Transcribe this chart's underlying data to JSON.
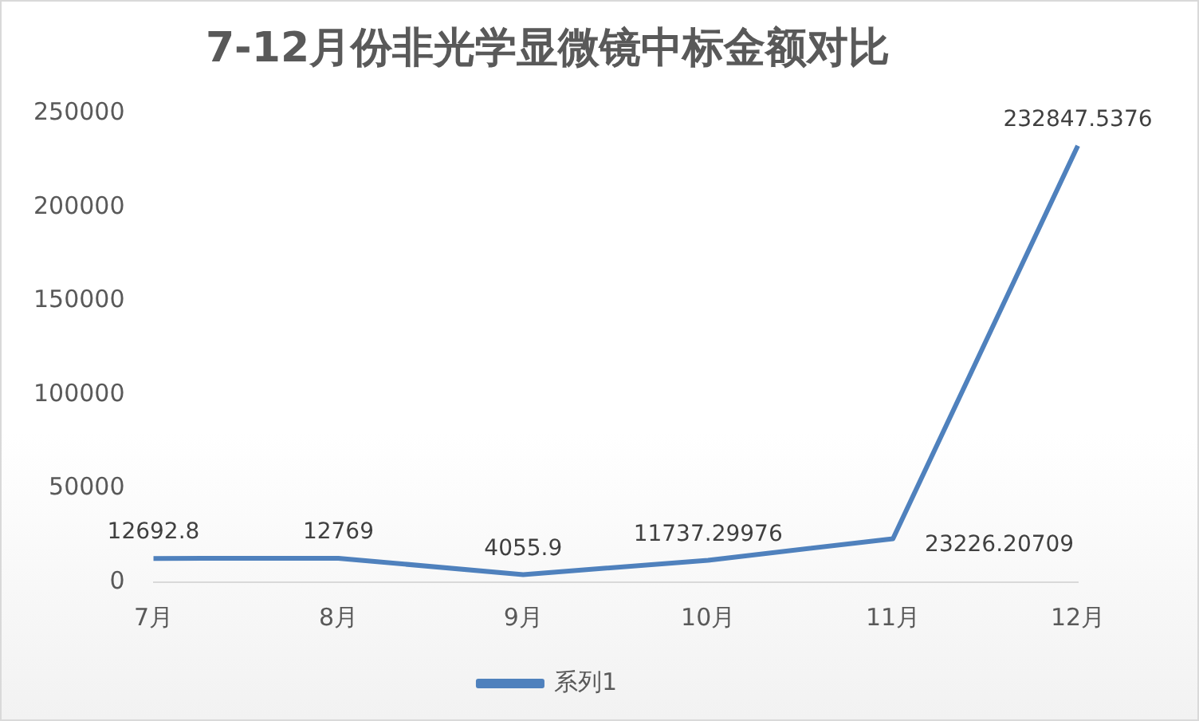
{
  "chart_data": {
    "type": "line",
    "title": "7-12月份非光学显微镜中标金额对比",
    "categories": [
      "7月",
      "8月",
      "9月",
      "10月",
      "11月",
      "12月"
    ],
    "series": [
      {
        "name": "系列1",
        "color": "#4f81bd",
        "values": [
          12692.8,
          12769,
          4055.9,
          11737.29976,
          23226.20709,
          232847.5376
        ]
      }
    ],
    "ylim": [
      0,
      250000
    ],
    "yticks": [
      0,
      50000,
      100000,
      150000,
      200000,
      250000
    ],
    "grid": false,
    "legend": "bottom",
    "data_labels": true,
    "marker": "none",
    "line_style": "solid"
  }
}
